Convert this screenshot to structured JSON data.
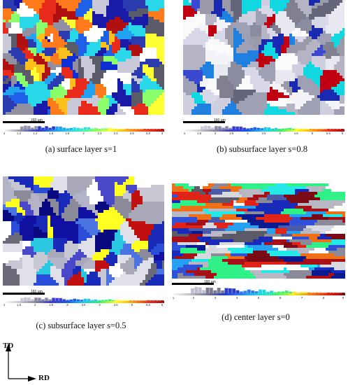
{
  "panels": [
    {
      "id": "a",
      "caption": "(a) surface layer s=1",
      "scale_label": "160 µm",
      "ticks": [
        "1",
        "1.2",
        "1.4",
        "1.6",
        "1.8",
        "2",
        "2.2",
        "2.4",
        "2.6",
        "2.8",
        "3"
      ],
      "palette": [
        "#1a1aa8",
        "#0d2fd1",
        "#1e60e8",
        "#22a3f0",
        "#29d8e8",
        "#8aff6b",
        "#ffff33",
        "#ffbf1a",
        "#ff7a1a",
        "#e82a1a",
        "#b01010",
        "#ffffff",
        "#c8c8d8",
        "#9090a0",
        "#5a5a68",
        "#2b3bb0"
      ]
    },
    {
      "id": "b",
      "caption": "(b) subsurface layer s=0.8",
      "scale_label": "160 µm",
      "ticks": [
        "1",
        "1.5",
        "2",
        "2.5",
        "3",
        "3.5",
        "4",
        "4.5",
        "5",
        "5.5",
        "6"
      ],
      "palette": [
        "#e8e8f0",
        "#cfcfe0",
        "#b4b4c4",
        "#9a9aa8",
        "#808090",
        "#66667a",
        "#f4f4f8",
        "#d8d8e8",
        "#a0a0b4",
        "#3a4ad0",
        "#1a2ab0",
        "#10d8e0",
        "#2080e0",
        "#c00010",
        "#fafafa",
        "#8c8ca0"
      ]
    },
    {
      "id": "c",
      "caption": "(c) subsurface layer s=0.5",
      "scale_label": "160 µm",
      "ticks": [
        "1",
        "1.5",
        "2",
        "2.5",
        "3",
        "3.5",
        "4",
        "4.5",
        "5",
        "5.5",
        "6"
      ],
      "palette": [
        "#1a2ab8",
        "#2a4ed8",
        "#4a72e0",
        "#c8c8d4",
        "#a8a8b8",
        "#8a8a98",
        "#ffffff",
        "#e0e0ea",
        "#6a6a78",
        "#1010a0",
        "#0a0a80",
        "#2ac8e0",
        "#ffff22",
        "#c01010",
        "#4848c8",
        "#b4b4c8"
      ]
    },
    {
      "id": "d",
      "caption": "(d) center layer s=0",
      "scale_label": "180 µm",
      "ticks": [
        "1",
        "2",
        "3",
        "4",
        "5",
        "6",
        "7",
        "8",
        "9"
      ],
      "palette": [
        "#e02418",
        "#a81018",
        "#7a0a14",
        "#1a2ab8",
        "#3050d8",
        "#22e8e8",
        "#30f088",
        "#8a8a98",
        "#b8b8c4",
        "#d8d8e0",
        "#4a5aa8",
        "#ffffff",
        "#5a5a68",
        "#f07018",
        "#26a0f0",
        "#0a1a90"
      ]
    }
  ],
  "axes": {
    "vertical_label": "TD",
    "horizontal_label": "RD"
  }
}
